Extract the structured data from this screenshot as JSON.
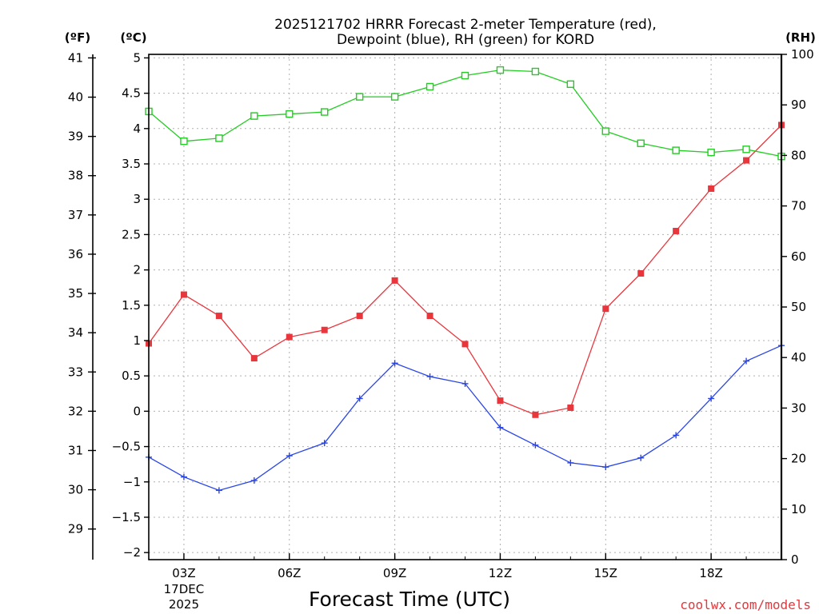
{
  "chart_data": {
    "type": "line",
    "title": [
      "2025121702 HRRR Forecast 2-meter Temperature (red),",
      "Dewpoint (blue), RH (green) for KORD"
    ],
    "xlabel": "Forecast Time (UTC)",
    "credit": "coolwx.com/models",
    "units": {
      "fahrenheit": "(ºF)",
      "celsius": "(ºC)",
      "rh": "(RH)"
    },
    "x": [
      2,
      3,
      4,
      5,
      6,
      7,
      8,
      9,
      10,
      11,
      12,
      13,
      14,
      15,
      16,
      17,
      18,
      19,
      20
    ],
    "xlim": [
      2,
      20
    ],
    "x_ticks": [
      {
        "x": 3,
        "label": "03Z",
        "sub": [
          "17DEC",
          "2025"
        ]
      },
      {
        "x": 6,
        "label": "06Z",
        "sub": []
      },
      {
        "x": 9,
        "label": "09Z",
        "sub": []
      },
      {
        "x": 12,
        "label": "12Z",
        "sub": []
      },
      {
        "x": 15,
        "label": "15Z",
        "sub": []
      },
      {
        "x": 18,
        "label": "18Z",
        "sub": []
      }
    ],
    "celsius_axis": {
      "ylim": [
        -2.1,
        5.05
      ],
      "ticks": [
        -2,
        -1.5,
        -1,
        -0.5,
        0,
        0.5,
        1,
        1.5,
        2,
        2.5,
        3,
        3.5,
        4,
        4.5,
        5
      ],
      "tick_labels": [
        "−2",
        "−1.5",
        "−1",
        "−0.5",
        "0",
        "0.5",
        "1",
        "1.5",
        "2",
        "2.5",
        "3",
        "3.5",
        "4",
        "4.5",
        "5"
      ]
    },
    "fahrenheit_axis": {
      "ticks": [
        29,
        30,
        31,
        32,
        33,
        34,
        35,
        36,
        37,
        38,
        39,
        40,
        41
      ],
      "tick_labels": [
        "29",
        "30",
        "31",
        "32",
        "33",
        "34",
        "35",
        "36",
        "37",
        "38",
        "39",
        "40",
        "41"
      ]
    },
    "rh_axis": {
      "ylim": [
        0,
        100
      ],
      "ticks": [
        0,
        10,
        20,
        30,
        40,
        50,
        60,
        70,
        80,
        90,
        100
      ],
      "tick_labels": [
        "0",
        "10",
        "20",
        "30",
        "40",
        "50",
        "60",
        "70",
        "80",
        "90",
        "100"
      ]
    },
    "grid": true,
    "series": [
      {
        "name": "2-meter Temperature",
        "axis": "celsius",
        "color": "#e8363d",
        "marker": "filled-square",
        "values": [
          0.96,
          1.65,
          1.35,
          0.75,
          1.05,
          1.15,
          1.35,
          1.85,
          1.35,
          0.95,
          0.15,
          -0.05,
          0.05,
          1.45,
          1.95,
          2.55,
          3.15,
          3.55,
          4.05
        ]
      },
      {
        "name": "Dewpoint",
        "axis": "celsius",
        "color": "#2a45e6",
        "marker": "plus",
        "values": [
          -0.65,
          -0.93,
          -1.12,
          -0.98,
          -0.63,
          -0.45,
          0.18,
          0.68,
          0.49,
          0.39,
          -0.23,
          -0.48,
          -0.73,
          -0.79,
          -0.66,
          -0.34,
          0.18,
          0.71,
          0.93
        ]
      },
      {
        "name": "Relative Humidity",
        "axis": "rh",
        "color": "#22cc22",
        "marker": "open-square",
        "values": [
          88.7,
          82.8,
          83.4,
          87.8,
          88.2,
          88.6,
          91.6,
          91.6,
          93.6,
          95.8,
          96.9,
          96.6,
          94.1,
          84.8,
          82.4,
          81.0,
          80.6,
          81.2,
          79.8
        ]
      }
    ]
  }
}
